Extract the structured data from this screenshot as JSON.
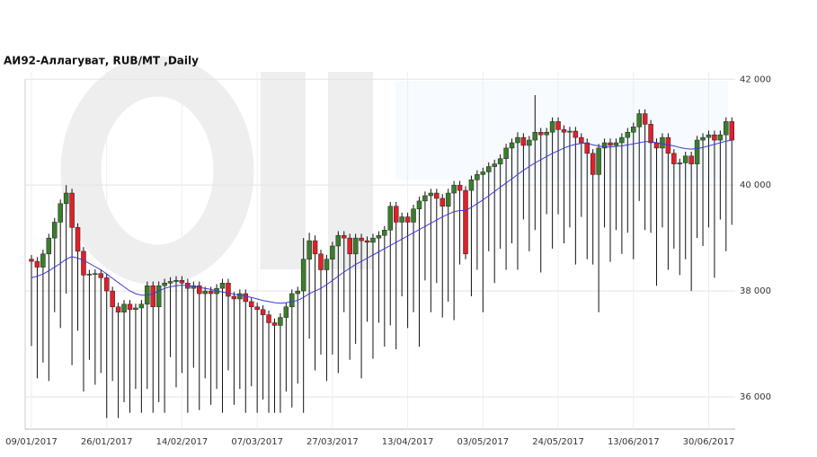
{
  "chart_data": {
    "type": "candlestick",
    "title": "АИ92-Аллагуват,  RUB/MT ,Daily",
    "up_color": "#3a7d2c",
    "down_color": "#e0202a",
    "wick_color": "#111111",
    "grid": true,
    "ylim": [
      35390,
      42140
    ],
    "yticks": [
      {
        "value": 36000,
        "label": "36 000"
      },
      {
        "value": 38000,
        "label": "38 000"
      },
      {
        "value": 40000,
        "label": "40 000"
      },
      {
        "value": 42000,
        "label": "42 000"
      }
    ],
    "categories": [
      "09/01/2017",
      null,
      null,
      null,
      null,
      null,
      null,
      null,
      null,
      null,
      null,
      null,
      null,
      "26/01/2017",
      null,
      null,
      null,
      null,
      null,
      null,
      null,
      null,
      null,
      null,
      null,
      null,
      "14/02/2017",
      null,
      null,
      null,
      null,
      null,
      null,
      null,
      null,
      null,
      null,
      null,
      null,
      "07/03/2017",
      null,
      null,
      null,
      null,
      null,
      null,
      null,
      null,
      null,
      null,
      null,
      null,
      "27/03/2017",
      null,
      null,
      null,
      null,
      null,
      null,
      null,
      null,
      null,
      null,
      null,
      null,
      "13/04/2017",
      null,
      null,
      null,
      null,
      null,
      null,
      null,
      null,
      null,
      null,
      null,
      null,
      "03/05/2017",
      null,
      null,
      null,
      null,
      null,
      null,
      null,
      null,
      null,
      null,
      null,
      null,
      "24/05/2017",
      null,
      null,
      null,
      null,
      null,
      null,
      null,
      null,
      null,
      null,
      null,
      null,
      "13/06/2017",
      null,
      null,
      null,
      null,
      null,
      null,
      null,
      null,
      null,
      null,
      null,
      null,
      "30/06/2017",
      null,
      null,
      null,
      null
    ],
    "ohlc": [
      [
        38600,
        38680,
        36960,
        38560
      ],
      [
        38560,
        38640,
        36350,
        38450
      ],
      [
        38450,
        38780,
        36650,
        38700
      ],
      [
        38700,
        39080,
        36300,
        39000
      ],
      [
        39000,
        39380,
        37600,
        39300
      ],
      [
        39300,
        39730,
        37300,
        39650
      ],
      [
        39650,
        40000,
        37950,
        39850
      ],
      [
        39850,
        39930,
        36600,
        39200
      ],
      [
        39200,
        39280,
        37250,
        38750
      ],
      [
        38750,
        38830,
        36100,
        38300
      ],
      [
        38300,
        38400,
        36700,
        38320
      ],
      [
        38320,
        38410,
        36230,
        38330
      ],
      [
        38330,
        38410,
        36450,
        38250
      ],
      [
        38250,
        38330,
        35600,
        38000
      ],
      [
        38000,
        38080,
        36300,
        37700
      ],
      [
        37700,
        37780,
        35600,
        37600
      ],
      [
        37600,
        37830,
        35900,
        37750
      ],
      [
        37750,
        37830,
        35700,
        37650
      ],
      [
        37650,
        37760,
        36150,
        37680
      ],
      [
        37680,
        37830,
        35700,
        37750
      ],
      [
        37750,
        38180,
        36150,
        38100
      ],
      [
        38100,
        38180,
        35700,
        37700
      ],
      [
        37700,
        38180,
        35900,
        38100
      ],
      [
        38100,
        38230,
        35700,
        38150
      ],
      [
        38150,
        38260,
        36750,
        38180
      ],
      [
        38180,
        38280,
        36180,
        38200
      ],
      [
        38200,
        38280,
        36450,
        38150
      ],
      [
        38150,
        38230,
        35700,
        38050
      ],
      [
        38050,
        38180,
        36550,
        38100
      ],
      [
        38100,
        38180,
        35750,
        37950
      ],
      [
        37950,
        38080,
        36350,
        38000
      ],
      [
        38000,
        38080,
        35850,
        37950
      ],
      [
        37950,
        38130,
        36150,
        38050
      ],
      [
        38050,
        38230,
        35700,
        38150
      ],
      [
        38150,
        38230,
        36500,
        37900
      ],
      [
        37900,
        37980,
        35850,
        37850
      ],
      [
        37850,
        38030,
        36150,
        37950
      ],
      [
        37950,
        38030,
        35700,
        37800
      ],
      [
        37800,
        37880,
        36200,
        37700
      ],
      [
        37700,
        37780,
        35700,
        37650
      ],
      [
        37650,
        37730,
        35950,
        37550
      ],
      [
        37550,
        37630,
        35700,
        37400
      ],
      [
        37400,
        37480,
        35700,
        37350
      ],
      [
        37350,
        37580,
        35700,
        37500
      ],
      [
        37500,
        37780,
        36100,
        37700
      ],
      [
        37700,
        38030,
        35800,
        37950
      ],
      [
        37950,
        38080,
        36250,
        38000
      ],
      [
        38000,
        39000,
        35700,
        38600
      ],
      [
        38600,
        39100,
        37100,
        38950
      ],
      [
        38950,
        39050,
        36500,
        38700
      ],
      [
        38700,
        38780,
        36800,
        38400
      ],
      [
        38400,
        38680,
        36300,
        38600
      ],
      [
        38600,
        38930,
        36800,
        38850
      ],
      [
        38850,
        39130,
        36450,
        39050
      ],
      [
        39050,
        39130,
        37600,
        39000
      ],
      [
        39000,
        39080,
        36700,
        38700
      ],
      [
        38700,
        39080,
        37000,
        39000
      ],
      [
        39000,
        39080,
        36350,
        38950
      ],
      [
        38950,
        39030,
        37420,
        38920
      ],
      [
        38920,
        39080,
        36720,
        39000
      ],
      [
        39000,
        39130,
        37400,
        39050
      ],
      [
        39050,
        39230,
        36950,
        39150
      ],
      [
        39150,
        39680,
        37350,
        39600
      ],
      [
        39600,
        39680,
        36900,
        39300
      ],
      [
        39300,
        39480,
        37900,
        39400
      ],
      [
        39400,
        39480,
        37300,
        39300
      ],
      [
        39300,
        39630,
        37600,
        39550
      ],
      [
        39550,
        39780,
        36950,
        39700
      ],
      [
        39700,
        39880,
        38200,
        39800
      ],
      [
        39800,
        39930,
        37600,
        39850
      ],
      [
        39850,
        39930,
        38150,
        39750
      ],
      [
        39750,
        39830,
        37500,
        39600
      ],
      [
        39600,
        39930,
        37800,
        39850
      ],
      [
        39850,
        40080,
        37450,
        40000
      ],
      [
        40000,
        40080,
        38500,
        39900
      ],
      [
        39900,
        39980,
        38600,
        38700
      ],
      [
        39900,
        40180,
        37900,
        40100
      ],
      [
        40100,
        40280,
        38400,
        40200
      ],
      [
        40200,
        40330,
        37600,
        40250
      ],
      [
        40250,
        40430,
        38750,
        40350
      ],
      [
        40350,
        40480,
        38150,
        40400
      ],
      [
        40400,
        40580,
        38800,
        40500
      ],
      [
        40500,
        40780,
        38400,
        40700
      ],
      [
        40700,
        40880,
        38900,
        40800
      ],
      [
        40800,
        41000,
        38400,
        40900
      ],
      [
        40900,
        40980,
        39350,
        40750
      ],
      [
        40750,
        40930,
        38750,
        40850
      ],
      [
        40850,
        41700,
        39150,
        41000
      ],
      [
        41000,
        41080,
        38350,
        40950
      ],
      [
        40950,
        41080,
        39450,
        41000
      ],
      [
        41000,
        41280,
        38800,
        41200
      ],
      [
        41200,
        41280,
        39450,
        41050
      ],
      [
        41050,
        41130,
        38900,
        41000
      ],
      [
        41000,
        41100,
        39200,
        41020
      ],
      [
        41020,
        41100,
        38500,
        40900
      ],
      [
        40900,
        40980,
        39400,
        40800
      ],
      [
        40800,
        40880,
        38600,
        40600
      ],
      [
        40600,
        40680,
        38500,
        40200
      ],
      [
        40200,
        40780,
        37600,
        40700
      ],
      [
        40700,
        40880,
        39200,
        40800
      ],
      [
        40800,
        40880,
        38550,
        40750
      ],
      [
        40750,
        40880,
        39150,
        40800
      ],
      [
        40800,
        40980,
        38700,
        40900
      ],
      [
        40900,
        41080,
        39100,
        41000
      ],
      [
        41000,
        41180,
        38600,
        41100
      ],
      [
        41100,
        41430,
        39700,
        41350
      ],
      [
        41350,
        41430,
        39150,
        41150
      ],
      [
        41150,
        41230,
        39100,
        40800
      ],
      [
        40800,
        40880,
        38100,
        40700
      ],
      [
        40700,
        40980,
        39200,
        40900
      ],
      [
        40900,
        40980,
        38400,
        40600
      ],
      [
        40600,
        40680,
        38800,
        40400
      ],
      [
        40400,
        40500,
        38300,
        40420
      ],
      [
        40420,
        40630,
        38600,
        40550
      ],
      [
        40550,
        40630,
        38000,
        40400
      ],
      [
        40400,
        40930,
        39000,
        40850
      ],
      [
        40850,
        40980,
        38850,
        40900
      ],
      [
        40900,
        41030,
        39200,
        40950
      ],
      [
        40950,
        41030,
        38250,
        40850
      ],
      [
        40850,
        41030,
        39350,
        40950
      ],
      [
        40950,
        41280,
        38750,
        41200
      ],
      [
        41200,
        41280,
        39250,
        40850
      ]
    ],
    "ma": {
      "color": "#3b3bd6",
      "values": [
        38250,
        38280,
        38320,
        38380,
        38450,
        38520,
        38600,
        38650,
        38620,
        38580,
        38520,
        38460,
        38400,
        38320,
        38240,
        38160,
        38080,
        38000,
        37950,
        37920,
        37920,
        37950,
        38000,
        38050,
        38080,
        38100,
        38110,
        38100,
        38090,
        38070,
        38050,
        38030,
        38000,
        37980,
        37960,
        37940,
        37920,
        37900,
        37880,
        37850,
        37820,
        37800,
        37780,
        37770,
        37780,
        37800,
        37820,
        37880,
        37950,
        38000,
        38050,
        38120,
        38200,
        38280,
        38360,
        38430,
        38500,
        38560,
        38620,
        38680,
        38740,
        38800,
        38860,
        38920,
        38980,
        39040,
        39100,
        39160,
        39220,
        39280,
        39340,
        39400,
        39450,
        39500,
        39520,
        39520,
        39580,
        39650,
        39720,
        39800,
        39880,
        39960,
        40040,
        40120,
        40200,
        40280,
        40350,
        40420,
        40480,
        40540,
        40600,
        40650,
        40700,
        40740,
        40770,
        40790,
        40790,
        40760,
        40740,
        40720,
        40720,
        40730,
        40740,
        40760,
        40780,
        40800,
        40820,
        40820,
        40800,
        40780,
        40760,
        40740,
        40710,
        40690,
        40680,
        40690,
        40710,
        40740,
        40770,
        40800,
        40830,
        40850
      ]
    }
  }
}
